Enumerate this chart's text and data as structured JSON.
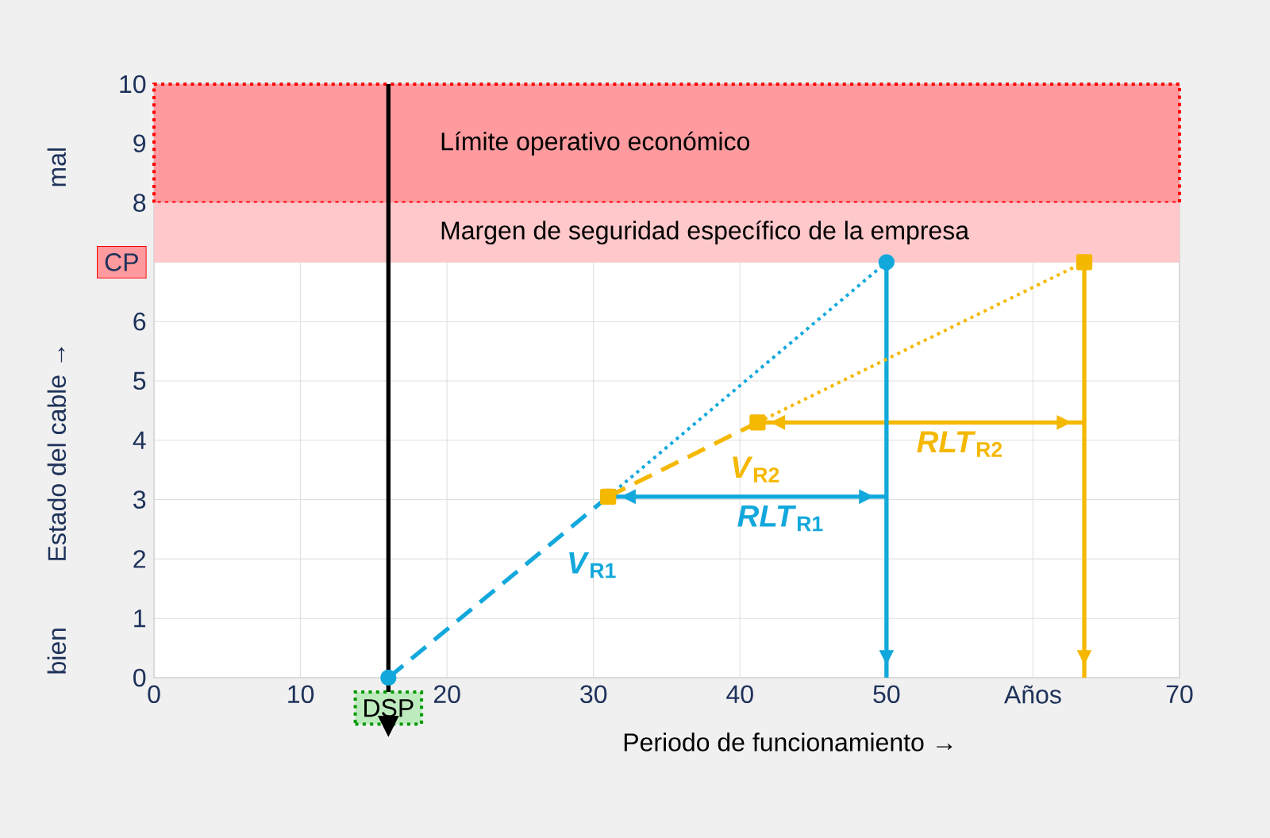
{
  "chart_data": {
    "type": "line",
    "xlabel": "Periodo de funcionamiento →",
    "ylabel": "Estado del cable →",
    "annotations": [
      "bien",
      "mal"
    ],
    "xlim": [
      0,
      70
    ],
    "ylim": [
      0,
      10
    ],
    "xticks": [
      0,
      10,
      20,
      30,
      40,
      50,
      {
        "value": 60,
        "label": "Años"
      },
      70
    ],
    "yticks": [
      0,
      1,
      2,
      3,
      4,
      5,
      6,
      {
        "value": 7,
        "label": "CP"
      },
      8,
      9,
      10
    ],
    "grid": true,
    "bands": [
      {
        "axis": "y",
        "from": 8,
        "to": 10,
        "label": "Límite operativo económico",
        "color": "#ff9a9e"
      },
      {
        "axis": "y",
        "from": 7,
        "to": 8,
        "label": "Margen de seguridad específico de la empresa",
        "color": "#ffc8ca"
      }
    ],
    "ref_lines": [
      {
        "axis": "x",
        "value": 16,
        "label": "DSP",
        "color": "#000000"
      }
    ],
    "series": [
      {
        "name": "*RLT*$_{R1}$",
        "color": "#13a8dc",
        "x": [
          31,
          50
        ],
        "values": [
          3.05,
          3.05
        ],
        "line_style": "solid"
      },
      {
        "name": "*RLT*$_{R2}$",
        "color": "#f5b800",
        "x": [
          41.2,
          63.5
        ],
        "values": [
          4.3,
          4.3
        ],
        "line_style": "solid"
      },
      {
        "color": "#13a8dc",
        "x": [
          50,
          50
        ],
        "values": [
          7,
          0
        ],
        "line_style": "solid"
      },
      {
        "color": "#f5b800",
        "x": [
          63.5,
          63.5
        ],
        "values": [
          7,
          0
        ],
        "line_style": "solid"
      },
      {
        "name": "*V*$_{R1}$",
        "color": "#13a8dc",
        "x": [
          16,
          31
        ],
        "values": [
          0,
          3.05
        ],
        "line_style": "dashed",
        "marker": "circle"
      },
      {
        "color": "#13a8dc",
        "x": [
          31,
          50
        ],
        "values": [
          3.05,
          7
        ],
        "line_style": "dotted"
      },
      {
        "type": "scatter",
        "color": "#13a8dc",
        "x": [
          50
        ],
        "values": [
          7
        ],
        "marker": "circle"
      },
      {
        "name": "*V*$_{R2}$",
        "color": "#f5b800",
        "x": [
          31,
          41.2
        ],
        "values": [
          3.05,
          4.3
        ],
        "line_style": "dashed"
      },
      {
        "type": "scatter",
        "color": "#f5b800",
        "x": [
          31,
          41.2
        ],
        "values": [
          3.05,
          4.3
        ],
        "marker": "square"
      },
      {
        "color": "#f5b800",
        "x": [
          41.2,
          63.5
        ],
        "values": [
          4.3,
          7
        ],
        "line_style": "dotted"
      },
      {
        "type": "scatter",
        "color": "#f5b800",
        "x": [
          63.5
        ],
        "values": [
          7
        ],
        "marker": "square"
      }
    ]
  }
}
